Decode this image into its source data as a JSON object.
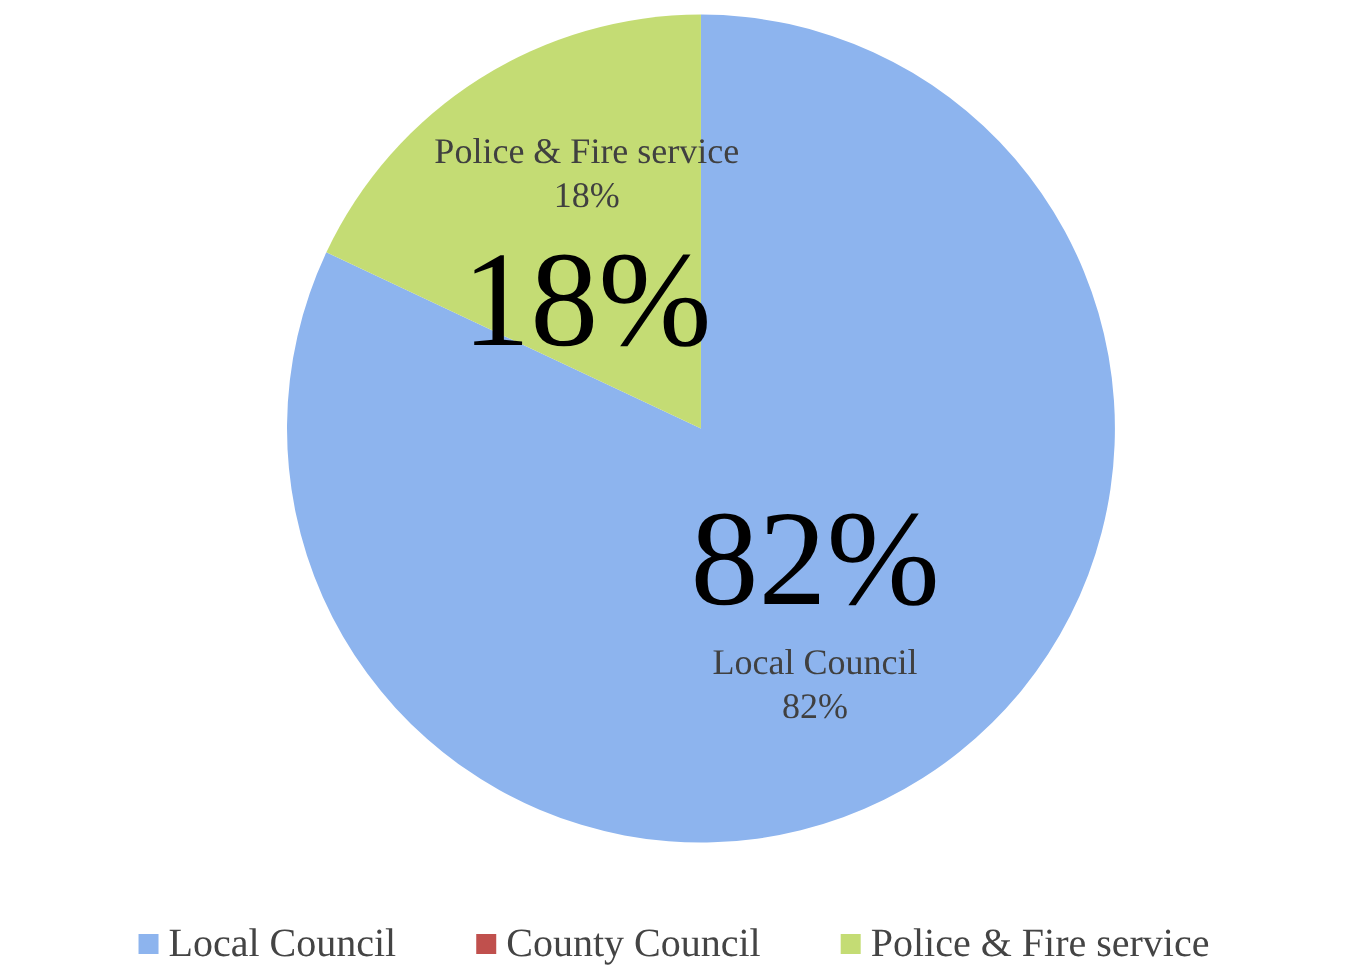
{
  "chart_data": {
    "type": "pie",
    "categories": [
      "Local Council",
      "County Council",
      "Police & Fire service"
    ],
    "values": [
      82,
      0,
      18
    ],
    "colors": [
      "#8db4ee",
      "#c0504d",
      "#c4dc74"
    ],
    "value_labels": [
      "82%",
      null,
      "18%"
    ],
    "legend": "bottom"
  }
}
